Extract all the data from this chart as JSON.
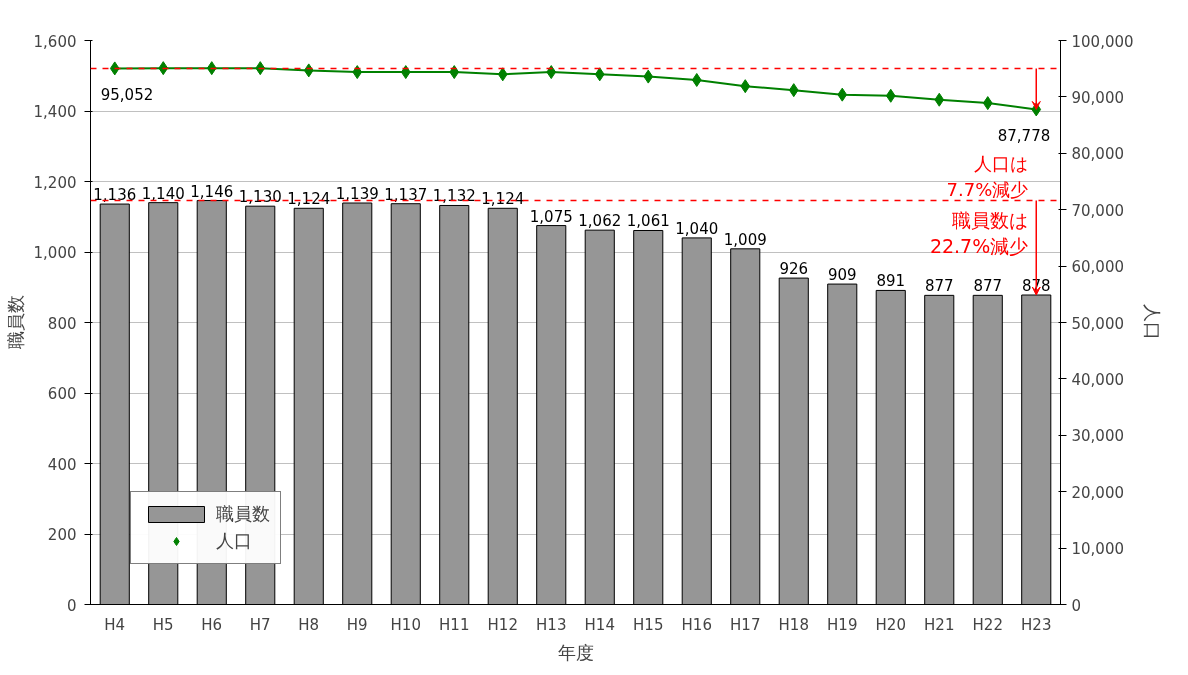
{
  "chart_data": {
    "type": "bar",
    "xlabel": "年度",
    "ylabel": "職員数",
    "y2label": "人口",
    "categories": [
      "H4",
      "H5",
      "H6",
      "H7",
      "H8",
      "H9",
      "H10",
      "H11",
      "H12",
      "H13",
      "H14",
      "H15",
      "H16",
      "H17",
      "H18",
      "H19",
      "H20",
      "H21",
      "H22",
      "H23"
    ],
    "series": [
      {
        "name": "職員数",
        "color": "#969696",
        "values": [
          1136,
          1140,
          1146,
          1130,
          1124,
          1139,
          1137,
          1132,
          1124,
          1075,
          1062,
          1061,
          1040,
          1009,
          926,
          909,
          891,
          877,
          877,
          878
        ],
        "value_labels": [
          "1,136",
          "1,140",
          "1,146",
          "1,130",
          "1,124",
          "1,139",
          "1,137",
          "1,132",
          "1,124",
          "1,075",
          "1,062",
          "1,061",
          "1,040",
          "1,009",
          "926",
          "909",
          "891",
          "877",
          "877",
          "878"
        ]
      },
      {
        "name": "人口",
        "type": "line",
        "axis": "y2",
        "color": "#008000",
        "marker": "diamond",
        "values": [
          95052,
          95100,
          95100,
          95100,
          94700,
          94400,
          94400,
          94400,
          94000,
          94400,
          94000,
          93600,
          93000,
          91900,
          91200,
          90400,
          90200,
          89500,
          88900,
          87778
        ],
        "value_labels": [
          "95,052",
          null,
          null,
          null,
          null,
          null,
          null,
          null,
          null,
          null,
          null,
          null,
          null,
          null,
          null,
          null,
          null,
          null,
          null,
          "87,778"
        ]
      }
    ],
    "ylim": [
      0,
      1600
    ],
    "yticks": [
      {
        "value": 0,
        "label": "0"
      },
      {
        "value": 200,
        "label": "200"
      },
      {
        "value": 400,
        "label": "400"
      },
      {
        "value": 600,
        "label": "600"
      },
      {
        "value": 800,
        "label": "800"
      },
      {
        "value": 1000,
        "label": "1,000"
      },
      {
        "value": 1200,
        "label": "1,200"
      },
      {
        "value": 1400,
        "label": "1,400"
      },
      {
        "value": 1600,
        "label": "1,600"
      }
    ],
    "y2lim": [
      0,
      100000
    ],
    "y2ticks": [
      {
        "value": 0,
        "label": "0"
      },
      {
        "value": 10000,
        "label": "10,000"
      },
      {
        "value": 20000,
        "label": "20,000"
      },
      {
        "value": 30000,
        "label": "30,000"
      },
      {
        "value": 40000,
        "label": "40,000"
      },
      {
        "value": 50000,
        "label": "50,000"
      },
      {
        "value": 60000,
        "label": "60,000"
      },
      {
        "value": 70000,
        "label": "70,000"
      },
      {
        "value": 80000,
        "label": "80,000"
      },
      {
        "value": 90000,
        "label": "90,000"
      },
      {
        "value": 100000,
        "label": "100,000"
      }
    ],
    "ref_lines": [
      {
        "axis": "y2",
        "value": 95052,
        "color": "#ff0000",
        "line_style": "dashed"
      },
      {
        "axis": "y",
        "value": 1146,
        "color": "#ff0000",
        "line_style": "dashed"
      }
    ],
    "annotations": [
      "人口は\n7.7%減少",
      {
        "text": "職員数は\n22.7%減少",
        "x": "H23",
        "y": 878
      }
    ],
    "grid": "y",
    "legend": "bottom left",
    "line_style": "solid"
  }
}
